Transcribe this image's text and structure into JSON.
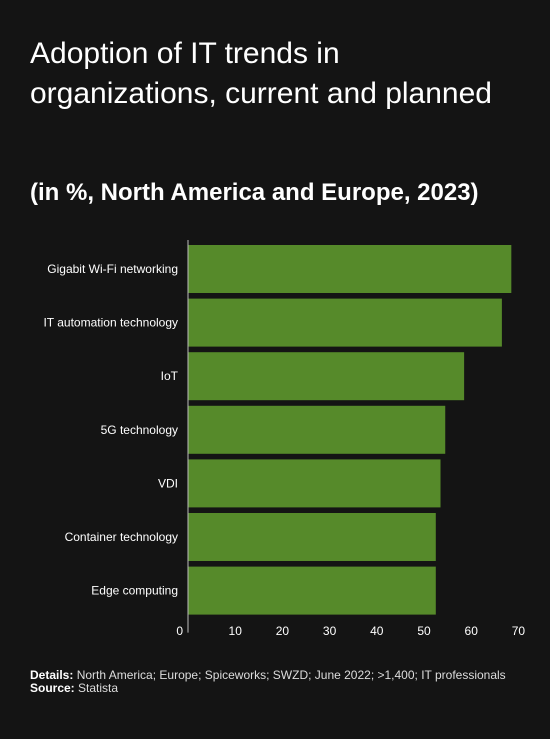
{
  "title": "Adoption of IT trends in organizations, current and planned",
  "subtitle": "(in %, North America and Europe, 2023)",
  "footer": {
    "details_label": "Details:",
    "details_text": "North America; Europe; Spiceworks; SWZD; June 2022; >1,400; IT professionals",
    "source_label": "Source:",
    "source_text": "Statista"
  },
  "colors": {
    "background": "#141414",
    "bar": "#568a2a",
    "axis": "#bbbbbb"
  },
  "chart_data": {
    "type": "bar",
    "orientation": "horizontal",
    "categories": [
      "Gigabit Wi-Fi networking",
      "IT automation technology",
      "IoT",
      "5G technology",
      "VDI",
      "Container technology",
      "Edge computing"
    ],
    "values": [
      68.5,
      66.5,
      58.5,
      54.5,
      53.5,
      52.5,
      52.5
    ],
    "x_ticks": [
      0,
      10,
      20,
      30,
      40,
      50,
      60,
      70
    ],
    "xlim": [
      0,
      70
    ],
    "grid": false,
    "legend": "none"
  }
}
